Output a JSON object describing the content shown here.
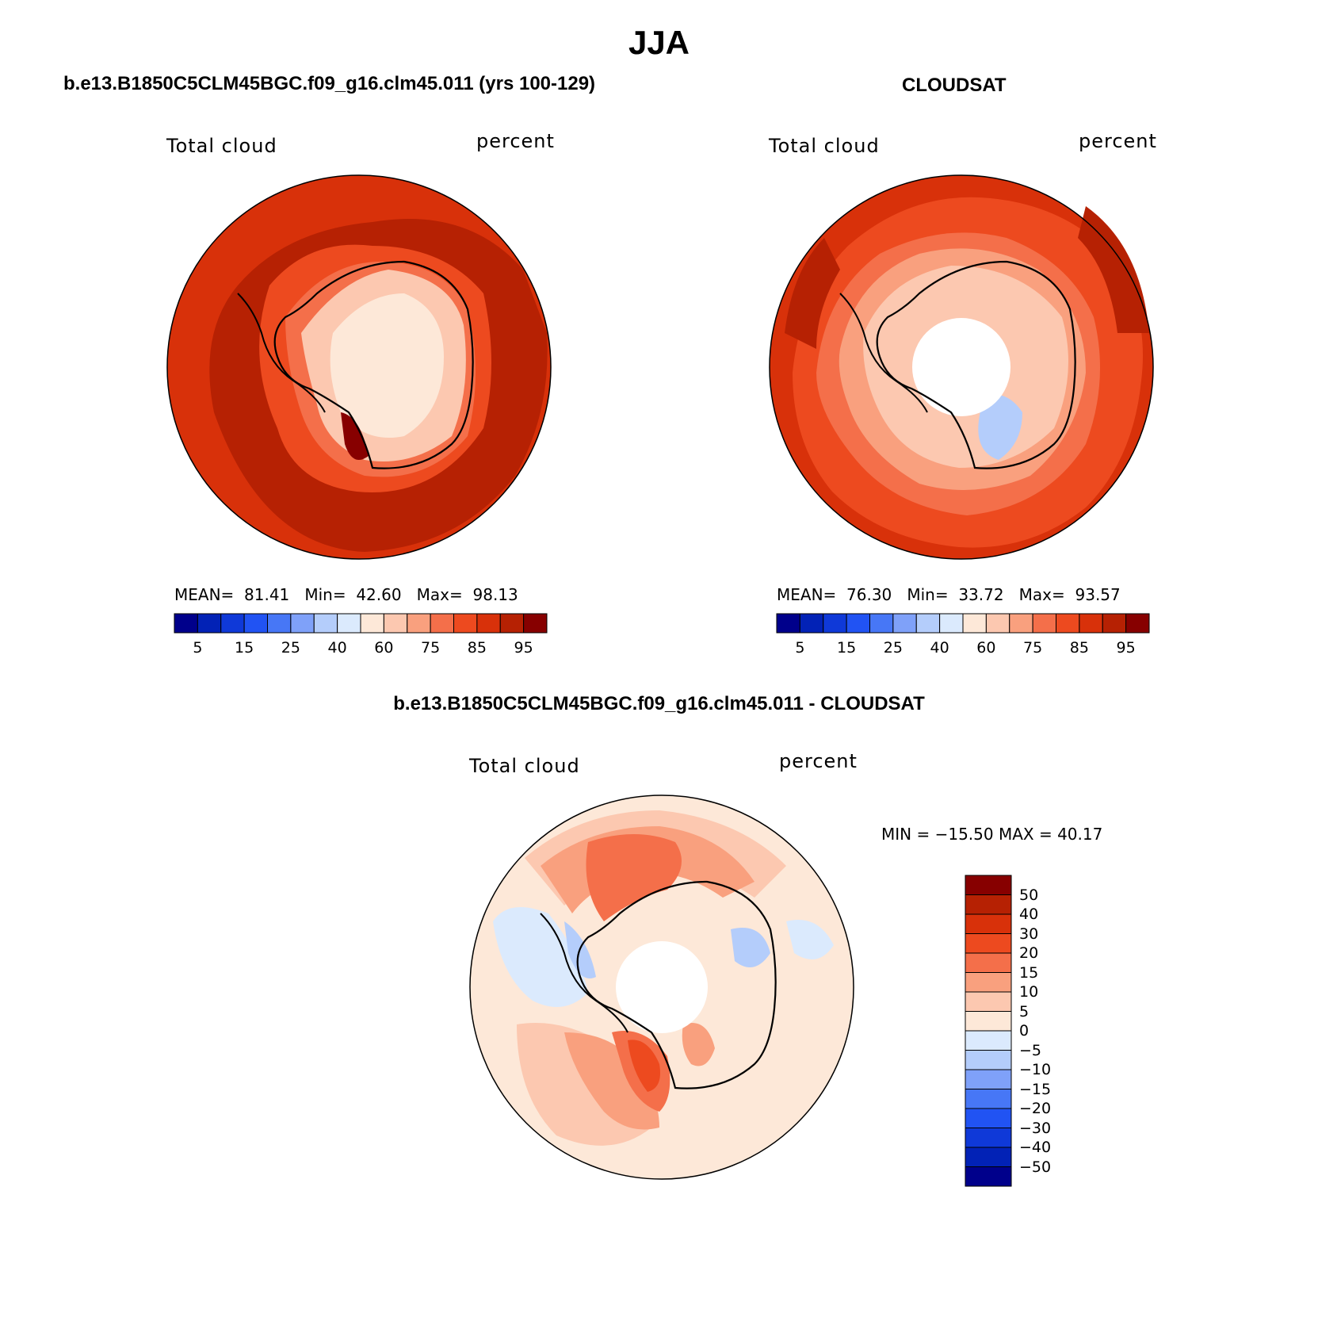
{
  "title": "JJA",
  "panels": {
    "model": {
      "title": "b.e13.B1850C5CLM45BGC.f09_g16.clm45.011 (yrs 100-129)",
      "var_label": "Total cloud",
      "units": "percent",
      "stats": {
        "mean_label": "MEAN=",
        "mean": "81.41",
        "min_label": "Min=",
        "min": "42.60",
        "max_label": "Max=",
        "max": "98.13"
      }
    },
    "obs": {
      "title": "CLOUDSAT",
      "var_label": "Total cloud",
      "units": "percent",
      "stats": {
        "mean_label": "MEAN=",
        "mean": "76.30",
        "min_label": "Min=",
        "min": "33.72",
        "max_label": "Max=",
        "max": "93.57"
      }
    },
    "diff": {
      "title": "b.e13.B1850C5CLM45BGC.f09_g16.clm45.011 - CLOUDSAT",
      "var_label": "Total cloud",
      "units": "percent",
      "stats_text": "MIN = −15.50 MAX =  40.17"
    }
  },
  "colorbars": {
    "abs": {
      "colors": [
        "#00008b",
        "#0222b6",
        "#0f39d8",
        "#2153f3",
        "#4777f6",
        "#7fa1f9",
        "#b4cdfb",
        "#dbeafd",
        "#fde8d8",
        "#fcc8b0",
        "#f9a07e",
        "#f46f4a",
        "#ed4a1f",
        "#d8310a",
        "#b62103",
        "#870000"
      ],
      "tick_labels": [
        "5",
        "15",
        "25",
        "40",
        "60",
        "75",
        "85",
        "95"
      ]
    },
    "diff": {
      "colors": [
        "#870000",
        "#b62103",
        "#d8310a",
        "#ed4a1f",
        "#f46f4a",
        "#f9a07e",
        "#fcc8b0",
        "#fde8d8",
        "#dbeafd",
        "#b4cdfb",
        "#7fa1f9",
        "#4777f6",
        "#2153f3",
        "#0f39d8",
        "#0222b6",
        "#00008b"
      ],
      "tick_labels": [
        "50",
        "40",
        "30",
        "20",
        "15",
        "10",
        "5",
        "0",
        "−5",
        "−10",
        "−15",
        "−20",
        "−30",
        "−40",
        "−50"
      ]
    }
  }
}
